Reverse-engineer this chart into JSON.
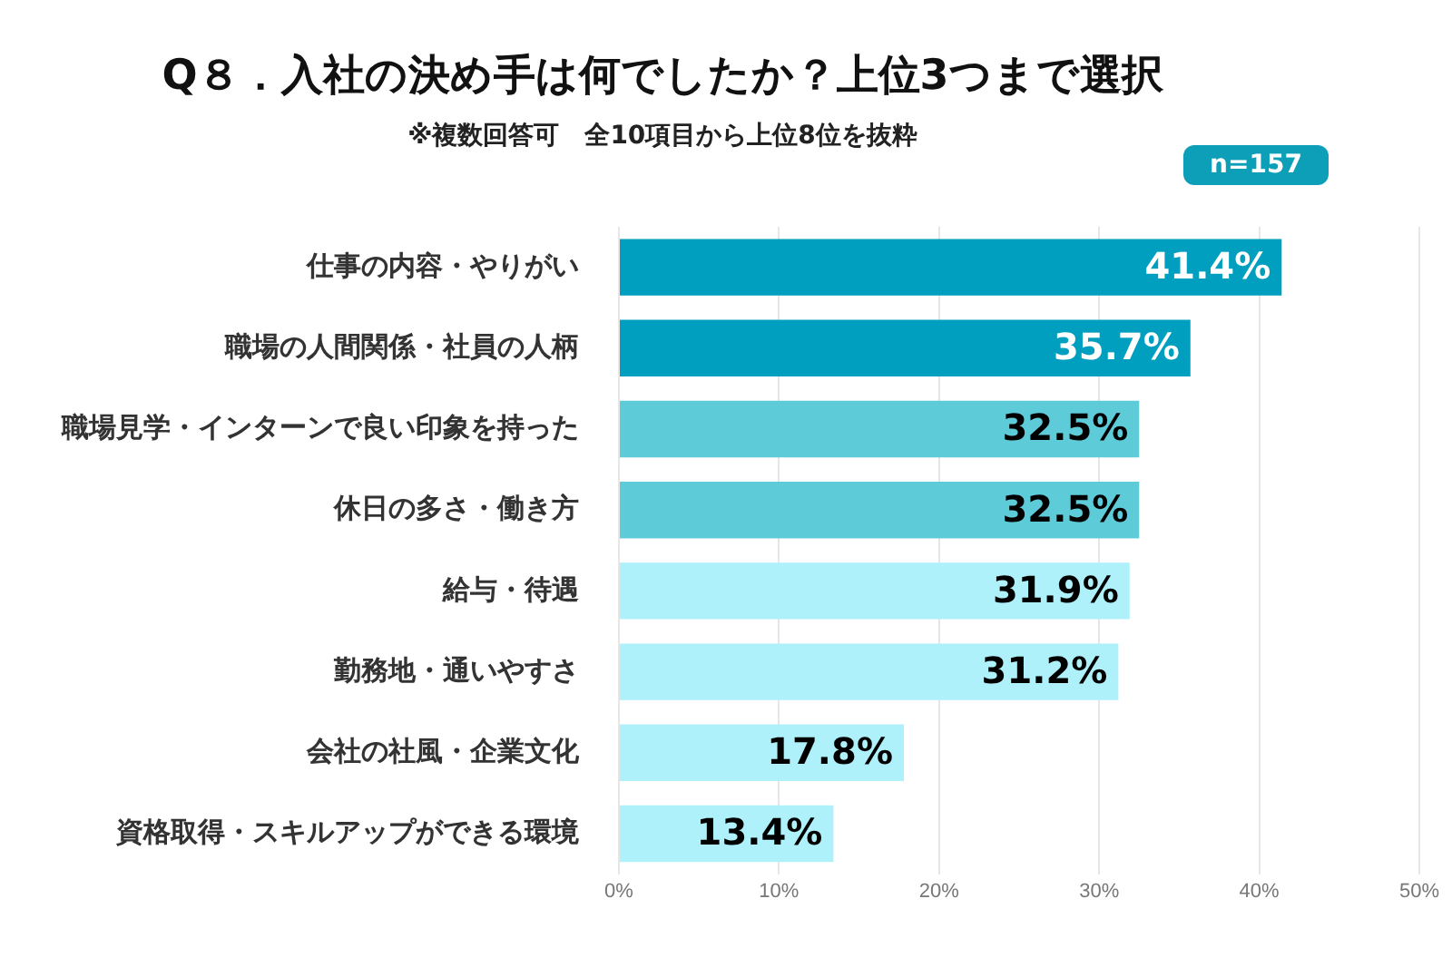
{
  "chart_data": {
    "type": "bar",
    "orientation": "horizontal",
    "title": "Q８．入社の決め手は何でしたか？上位3つまで選択",
    "subtitle": "※複数回答可　全10項目から上位8位を抜粋",
    "annotations": [
      "n=157"
    ],
    "categories": [
      "仕事の内容・やりがい",
      "職場の人間関係・社員の人柄",
      "職場見学・インターンで良い印象を持った",
      "休日の多さ・働き方",
      "給与・待遇",
      "勤務地・通いやすさ",
      "会社の社風・企業文化",
      "資格取得・スキルアップができる環境"
    ],
    "values": [
      41.4,
      35.7,
      32.5,
      32.5,
      31.9,
      31.2,
      17.8,
      13.4
    ],
    "value_labels": [
      "41.4%",
      "35.7%",
      "32.5%",
      "32.5%",
      "31.9%",
      "31.2%",
      "17.8%",
      "13.4%"
    ],
    "colors": [
      "#009fbf",
      "#009fbf",
      "#5ecbd9",
      "#5ecbd9",
      "#aef1fb",
      "#aef1fb",
      "#aef1fb",
      "#aef1fb"
    ],
    "xlim": [
      0,
      50
    ],
    "xticks": [
      {
        "value": 0,
        "label": "0%"
      },
      {
        "value": 10,
        "label": "10%"
      },
      {
        "value": 20,
        "label": "20%"
      },
      {
        "value": 30,
        "label": "30%"
      },
      {
        "value": 40,
        "label": "40%"
      },
      {
        "value": 50,
        "label": "50%"
      }
    ],
    "grid": "x",
    "legend": false
  }
}
